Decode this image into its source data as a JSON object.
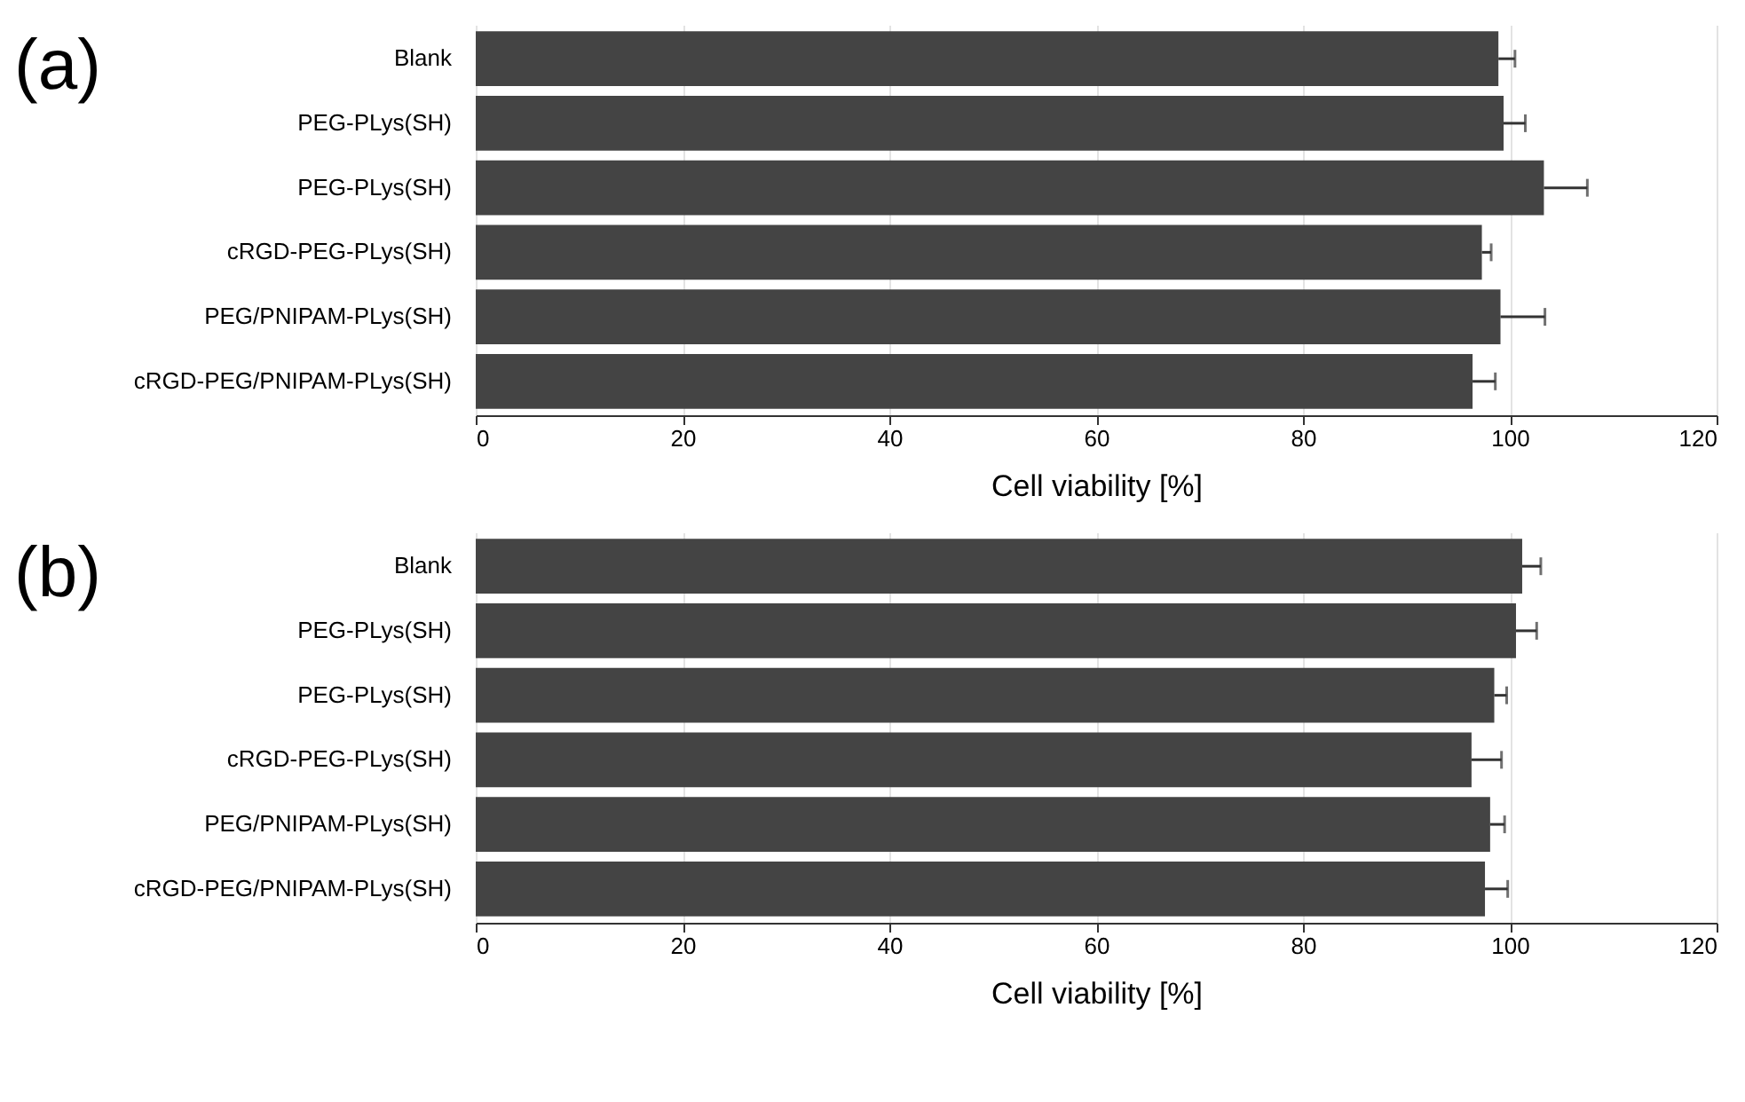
{
  "chart_data": [
    {
      "type": "bar",
      "orientation": "horizontal",
      "title": "(a)",
      "categories": [
        "Blank",
        "PEG-PLys(SH)",
        "PEG-PLys(SH)",
        "cRGD-PEG-PLys(SH)",
        "PEG/PNIPAM-PLys(SH)",
        "cRGD-PEG/PNIPAM-PLys(SH)"
      ],
      "values": [
        98.9,
        99.4,
        103.3,
        97.3,
        99.1,
        96.4
      ],
      "errors": [
        [
          98.9,
          100.5
        ],
        [
          99.4,
          101.5
        ],
        [
          103.3,
          107.5
        ],
        [
          97.3,
          98.2
        ],
        [
          99.1,
          103.4
        ],
        [
          96.4,
          98.6
        ]
      ],
      "color": "#444444",
      "xlim": [
        0,
        120
      ],
      "xticks": [
        0,
        20,
        40,
        60,
        80,
        100,
        120
      ],
      "xlabel": "Cell viability [%]",
      "grid": "x"
    },
    {
      "type": "bar",
      "orientation": "horizontal",
      "title": "(b)",
      "categories": [
        "Blank",
        "PEG-PLys(SH)",
        "PEG-PLys(SH)",
        "cRGD-PEG-PLys(SH)",
        "PEG/PNIPAM-PLys(SH)",
        "cRGD-PEG/PNIPAM-PLys(SH)"
      ],
      "values": [
        101.2,
        100.6,
        98.5,
        96.3,
        98.1,
        97.6
      ],
      "errors": [
        [
          101.2,
          103
        ],
        [
          100.6,
          102.6
        ],
        [
          98.5,
          99.7
        ],
        [
          96.3,
          99.2
        ],
        [
          98.1,
          99.5
        ],
        [
          97.6,
          99.8
        ]
      ],
      "color": "#444444",
      "xlim": [
        0,
        120
      ],
      "xticks": [
        0,
        20,
        40,
        60,
        80,
        100,
        120
      ],
      "xlabel": "Cell viability [%]",
      "grid": "x"
    }
  ]
}
